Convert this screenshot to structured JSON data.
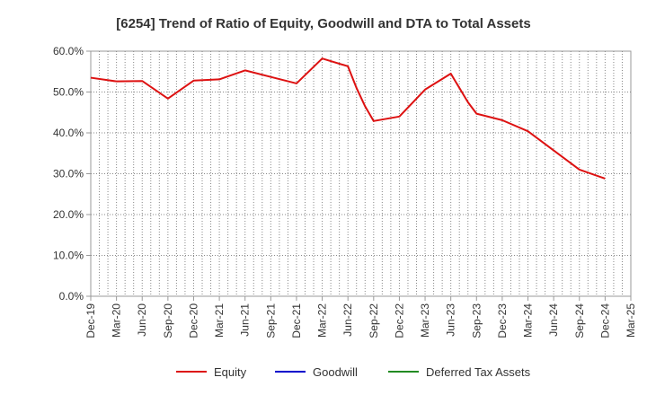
{
  "chart_data": {
    "type": "line",
    "title": "[6254]  Trend of Ratio of Equity, Goodwill and DTA to Total Assets",
    "xlabel": "",
    "ylabel": "",
    "ylim": [
      0,
      60
    ],
    "y_ticks": [
      "0.0%",
      "10.0%",
      "20.0%",
      "30.0%",
      "40.0%",
      "50.0%",
      "60.0%"
    ],
    "x_ticks": [
      "Dec-19",
      "Mar-20",
      "Jun-20",
      "Sep-20",
      "Dec-20",
      "Mar-21",
      "Jun-21",
      "Sep-21",
      "Dec-21",
      "Mar-22",
      "Jun-22",
      "Sep-22",
      "Dec-22",
      "Mar-23",
      "Jun-23",
      "Sep-23",
      "Dec-23",
      "Mar-24",
      "Jun-24",
      "Sep-24",
      "Dec-24",
      "Mar-25"
    ],
    "x_months": [
      "Dec-19",
      "Mar-20",
      "Jun-20",
      "Sep-20",
      "Dec-20",
      "Mar-21",
      "Jun-21",
      "Sep-21",
      "Dec-21",
      "Mar-22",
      "Jun-22",
      "Jul-22",
      "Aug-22",
      "Sep-22",
      "Dec-22",
      "Mar-23",
      "Jun-23",
      "Jul-23",
      "Aug-23",
      "Sep-23",
      "Dec-23",
      "Mar-24",
      "Jun-24",
      "Sep-24",
      "Dec-24"
    ],
    "grid": true,
    "legend_position": "bottom",
    "series": [
      {
        "name": "Equity",
        "color": "#dd1111",
        "values": [
          53.5,
          52.6,
          52.7,
          48.4,
          52.8,
          53.1,
          55.3,
          53.7,
          52.1,
          58.2,
          56.3,
          51.0,
          46.5,
          42.9,
          44.0,
          50.6,
          54.5,
          51.0,
          47.5,
          44.7,
          43.1,
          40.4,
          35.7,
          31.0,
          28.8
        ]
      },
      {
        "name": "Goodwill",
        "color": "#0000cc",
        "values": []
      },
      {
        "name": "Deferred Tax Assets",
        "color": "#228b22",
        "values": []
      }
    ]
  }
}
